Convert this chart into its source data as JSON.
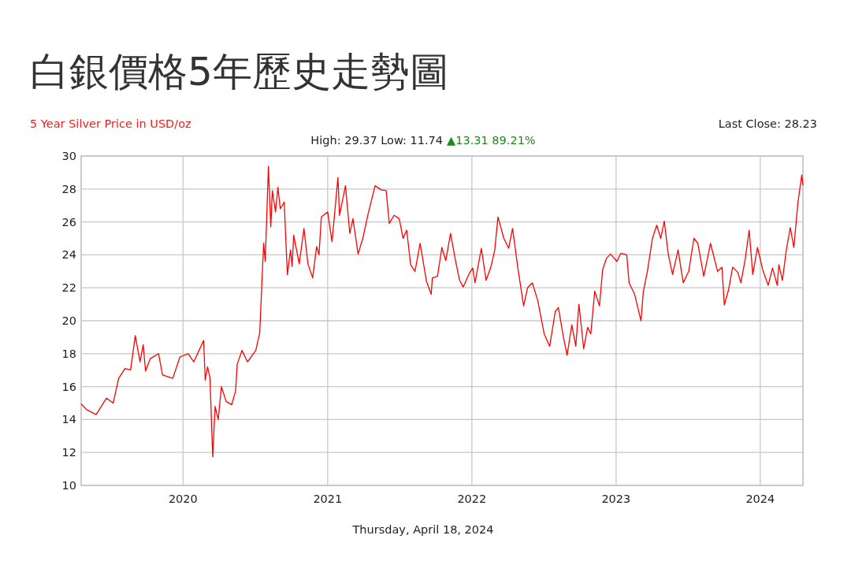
{
  "chart_data": {
    "type": "line",
    "title": "白銀價格5年歷史走勢圖",
    "subtitle": "5 Year Silver Price in USD/oz",
    "annotations": [
      "Last Close: 28.23",
      "High: 29.37 Low: 11.74",
      "▲13.31 89.21%",
      "Thursday, April 18, 2024"
    ],
    "xlim": [
      "2019-04-18",
      "2024-04-18"
    ],
    "xticks": [
      {
        "value": "2020-01-01",
        "label": "2020"
      },
      {
        "value": "2021-01-01",
        "label": "2021"
      },
      {
        "value": "2022-01-01",
        "label": "2022"
      },
      {
        "value": "2023-01-01",
        "label": "2023"
      },
      {
        "value": "2024-01-01",
        "label": "2024"
      }
    ],
    "ylim": [
      10,
      30
    ],
    "yticks": [
      10,
      12,
      14,
      16,
      18,
      20,
      22,
      24,
      26,
      28,
      30
    ],
    "grid": true,
    "marker": "none",
    "line_style": "solid",
    "series": [
      {
        "color": "#ff0000",
        "x": [
          "2019-04-18",
          "2019-05-02",
          "2019-05-26",
          "2019-06-21",
          "2019-07-08",
          "2019-07-22",
          "2019-08-07",
          "2019-08-21",
          "2019-09-02",
          "2019-09-14",
          "2019-09-22",
          "2019-09-28",
          "2019-10-10",
          "2019-10-31",
          "2019-11-10",
          "2019-12-06",
          "2019-12-24",
          "2020-01-14",
          "2020-01-28",
          "2020-02-22",
          "2020-02-26",
          "2020-03-03",
          "2020-03-09",
          "2020-03-16",
          "2020-03-22",
          "2020-03-30",
          "2020-04-07",
          "2020-04-19",
          "2020-05-03",
          "2020-05-13",
          "2020-05-17",
          "2020-05-29",
          "2020-06-12",
          "2020-07-03",
          "2020-07-13",
          "2020-07-19",
          "2020-07-23",
          "2020-07-27",
          "2020-08-04",
          "2020-08-10",
          "2020-08-14",
          "2020-08-22",
          "2020-08-28",
          "2020-09-03",
          "2020-09-13",
          "2020-09-21",
          "2020-09-29",
          "2020-10-03",
          "2020-10-07",
          "2020-10-21",
          "2020-11-02",
          "2020-11-12",
          "2020-11-24",
          "2020-12-04",
          "2020-12-10",
          "2020-12-16",
          "2021-01-01",
          "2021-01-12",
          "2021-01-27",
          "2021-01-31",
          "2021-02-15",
          "2021-02-26",
          "2021-03-06",
          "2021-03-19",
          "2021-03-31",
          "2021-04-13",
          "2021-05-01",
          "2021-05-16",
          "2021-05-29",
          "2021-06-06",
          "2021-06-18",
          "2021-07-01",
          "2021-07-11",
          "2021-07-20",
          "2021-07-30",
          "2021-08-10",
          "2021-08-23",
          "2021-09-08",
          "2021-09-20",
          "2021-09-23",
          "2021-10-06",
          "2021-10-17",
          "2021-10-27",
          "2021-11-08",
          "2021-11-21",
          "2021-12-01",
          "2021-12-10",
          "2021-12-25",
          "2022-01-03",
          "2022-01-09",
          "2022-01-25",
          "2022-02-06",
          "2022-02-18",
          "2022-02-28",
          "2022-03-08",
          "2022-03-23",
          "2022-04-04",
          "2022-04-14",
          "2022-04-28",
          "2022-05-12",
          "2022-05-22",
          "2022-06-03",
          "2022-06-17",
          "2022-07-03",
          "2022-07-17",
          "2022-07-31",
          "2022-08-08",
          "2022-08-20",
          "2022-08-30",
          "2022-09-11",
          "2022-09-21",
          "2022-09-29",
          "2022-10-11",
          "2022-10-21",
          "2022-10-29",
          "2022-11-08",
          "2022-11-20",
          "2022-11-28",
          "2022-12-08",
          "2022-12-18",
          "2023-01-03",
          "2023-01-13",
          "2023-01-28",
          "2023-02-03",
          "2023-02-17",
          "2023-02-24",
          "2023-03-05",
          "2023-03-11",
          "2023-03-22",
          "2023-04-03",
          "2023-04-14",
          "2023-04-24",
          "2023-05-03",
          "2023-05-13",
          "2023-05-24",
          "2023-06-07",
          "2023-06-20",
          "2023-07-04",
          "2023-07-17",
          "2023-07-27",
          "2023-08-11",
          "2023-08-28",
          "2023-09-15",
          "2023-09-26",
          "2023-10-02",
          "2023-10-13",
          "2023-10-23",
          "2023-11-05",
          "2023-11-13",
          "2023-11-24",
          "2023-12-04",
          "2023-12-13",
          "2023-12-25",
          "2024-01-07",
          "2024-01-21",
          "2024-02-01",
          "2024-02-13",
          "2024-02-17",
          "2024-02-26",
          "2024-03-07",
          "2024-03-17",
          "2024-03-26",
          "2024-04-05",
          "2024-04-15",
          "2024-04-18"
        ],
        "values": [
          14.95,
          14.6,
          14.3,
          15.3,
          15.0,
          16.5,
          17.1,
          17.0,
          19.1,
          17.5,
          18.55,
          16.95,
          17.7,
          18.0,
          16.7,
          16.5,
          17.8,
          18.0,
          17.5,
          18.8,
          16.4,
          17.2,
          16.55,
          11.74,
          14.8,
          14.0,
          16.0,
          15.1,
          14.9,
          15.75,
          17.35,
          18.2,
          17.5,
          18.2,
          19.25,
          22.6,
          24.7,
          23.6,
          29.37,
          25.7,
          27.9,
          26.6,
          28.1,
          26.8,
          27.2,
          22.8,
          24.3,
          23.3,
          25.2,
          23.45,
          25.6,
          23.45,
          22.6,
          24.5,
          24.0,
          26.3,
          26.6,
          24.8,
          28.7,
          26.4,
          28.2,
          25.3,
          26.2,
          24.05,
          25.0,
          26.45,
          28.2,
          27.95,
          27.9,
          25.9,
          26.4,
          26.2,
          25.0,
          25.5,
          23.4,
          23.0,
          24.7,
          22.4,
          21.6,
          22.6,
          22.7,
          24.45,
          23.65,
          25.3,
          23.6,
          22.45,
          22.05,
          22.85,
          23.2,
          22.3,
          24.4,
          22.45,
          23.25,
          24.3,
          26.3,
          25.0,
          24.4,
          25.6,
          23.1,
          20.9,
          22.0,
          22.3,
          21.2,
          19.2,
          18.45,
          20.55,
          20.8,
          19.1,
          17.9,
          19.75,
          18.45,
          21.0,
          18.3,
          19.6,
          19.2,
          21.8,
          20.9,
          23.1,
          23.8,
          24.05,
          23.6,
          24.1,
          24.0,
          22.3,
          21.6,
          20.9,
          20.0,
          21.75,
          23.1,
          25.0,
          25.8,
          25.0,
          26.05,
          24.05,
          22.8,
          24.3,
          22.3,
          23.0,
          25.0,
          24.7,
          22.7,
          24.7,
          23.0,
          23.25,
          20.95,
          21.9,
          23.25,
          22.95,
          22.3,
          23.75,
          25.5,
          22.8,
          24.45,
          23.1,
          22.15,
          23.2,
          22.15,
          23.4,
          22.45,
          24.3,
          25.65,
          24.45,
          27.1,
          28.85,
          28.23
        ]
      }
    ]
  }
}
